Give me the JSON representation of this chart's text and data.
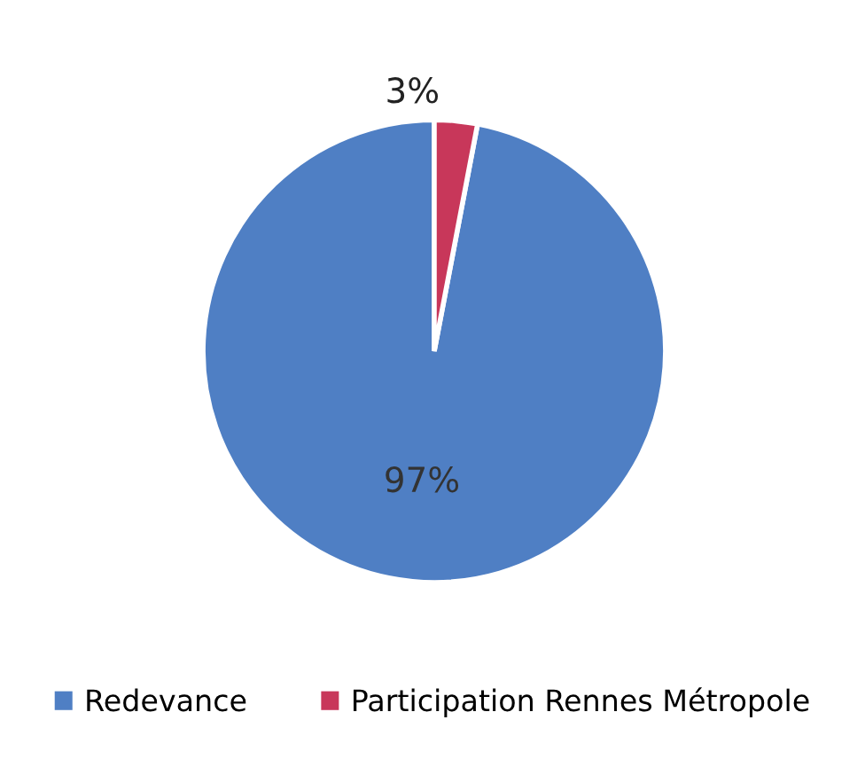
{
  "chart_data": {
    "type": "pie",
    "categories": [
      "Redevance",
      "Participation Rennes Métropole"
    ],
    "values": [
      97,
      3
    ],
    "colors": [
      "#4f7fc4",
      "#c8375a"
    ],
    "value_labels": [
      "97%",
      "3%"
    ],
    "legend": "bottom"
  }
}
